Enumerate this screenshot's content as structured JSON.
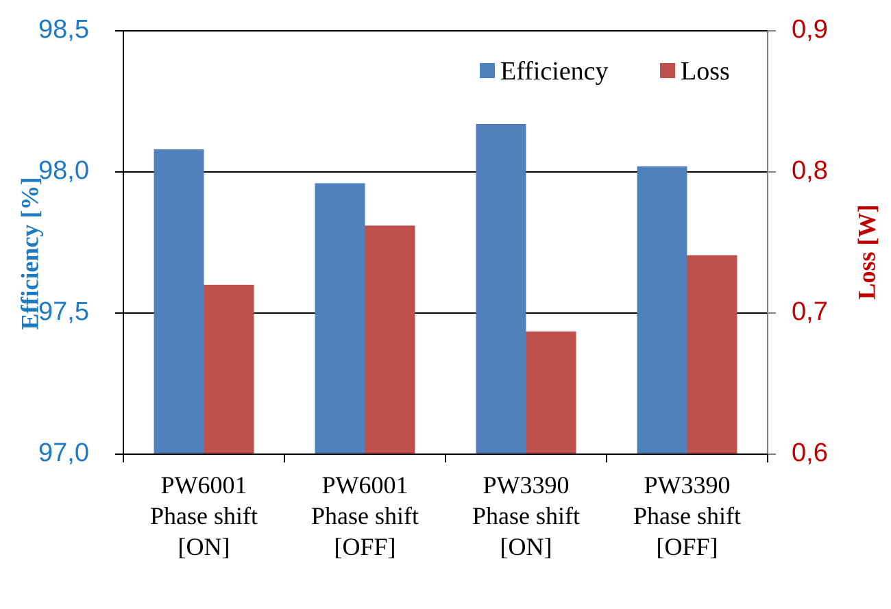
{
  "chart_data": {
    "type": "bar",
    "categories": [
      [
        "PW6001",
        "Phase shift",
        "[ON]"
      ],
      [
        "PW6001",
        "Phase shift",
        "[OFF]"
      ],
      [
        "PW3390",
        "Phase shift",
        "[ON]"
      ],
      [
        "PW3390",
        "Phase shift",
        "[OFF]"
      ]
    ],
    "series": [
      {
        "name": "Efficiency",
        "axis": "left",
        "color": "#4F81BD",
        "values": [
          98.08,
          97.96,
          98.17,
          98.02
        ]
      },
      {
        "name": "Loss",
        "axis": "right",
        "color": "#C0504D",
        "values": [
          0.72,
          0.762,
          0.687,
          0.741
        ]
      }
    ],
    "left_axis": {
      "label": "Efficiency  [%]",
      "color": "#1F7BC1",
      "range": [
        97.0,
        98.5
      ],
      "ticks": [
        "97,0",
        "97,5",
        "98,0",
        "98,5"
      ]
    },
    "right_axis": {
      "label": "Loss  [W]",
      "color": "#C00000",
      "range": [
        0.6,
        0.9
      ],
      "ticks": [
        "0,6",
        "0,7",
        "0,8",
        "0,9"
      ]
    },
    "grid": true,
    "legend_position": "top-right"
  }
}
